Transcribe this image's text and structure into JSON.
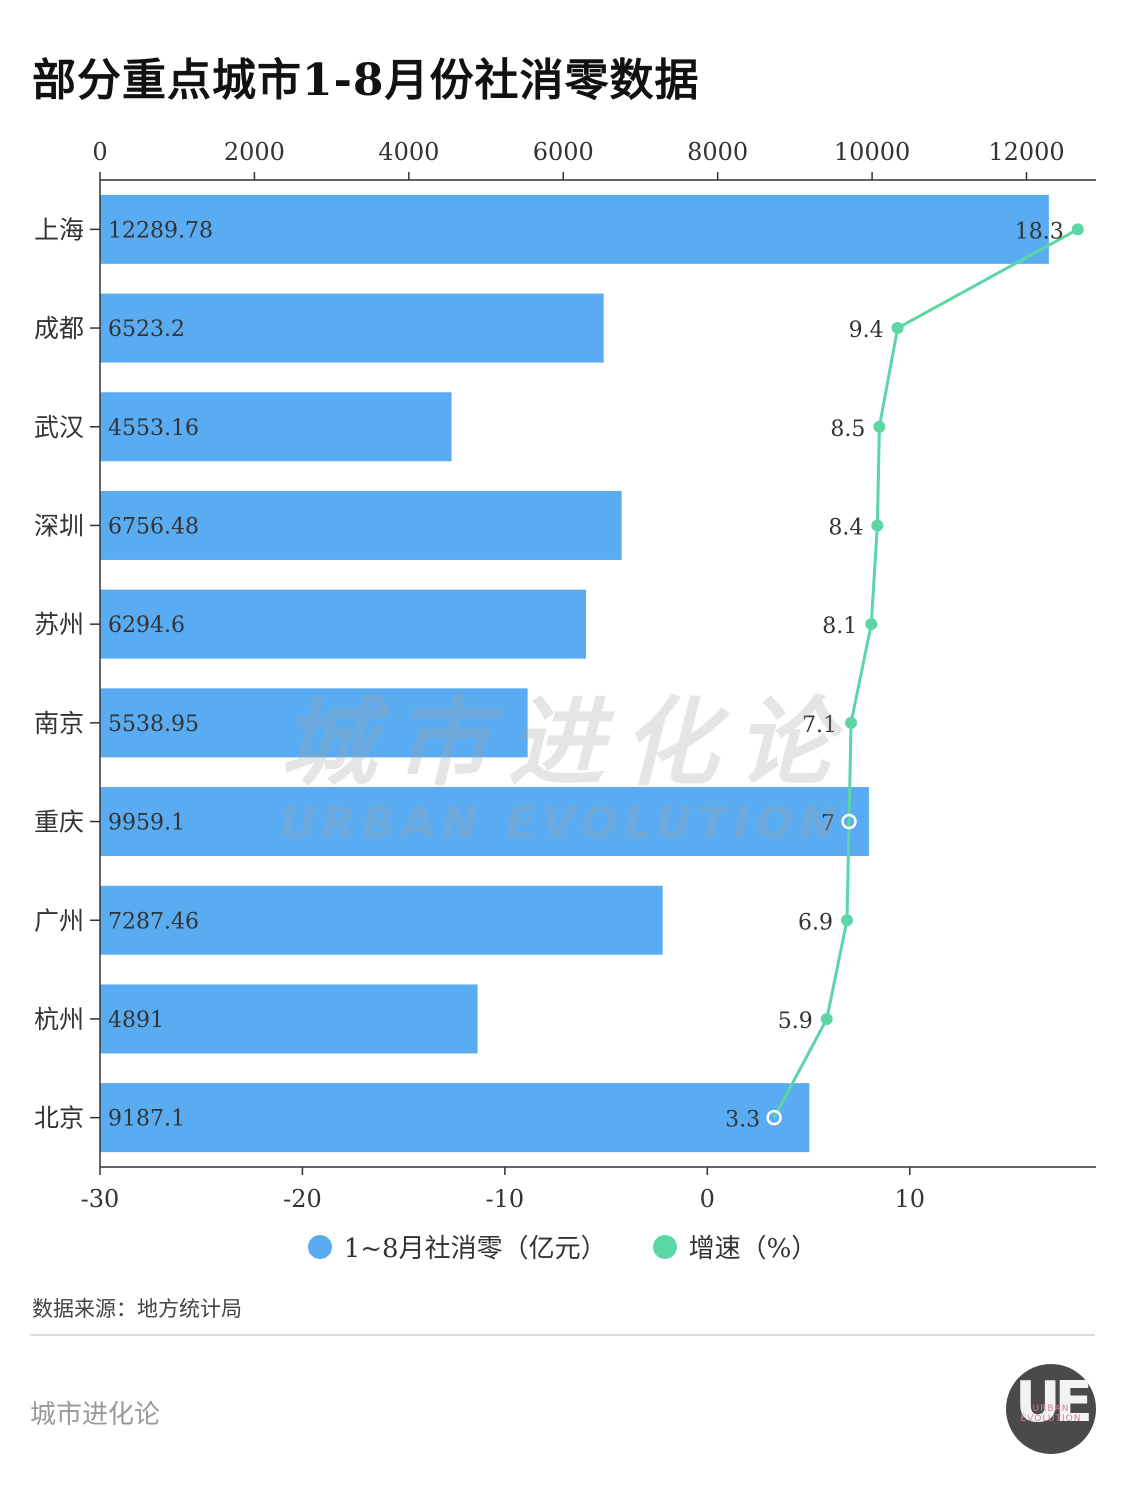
{
  "title": "部分重点城市1-8月份社消零数据",
  "chart_data": {
    "type": "bar",
    "orientation": "horizontal",
    "categories": [
      "上海",
      "成都",
      "武汉",
      "深圳",
      "苏州",
      "南京",
      "重庆",
      "广州",
      "杭州",
      "北京"
    ],
    "series": [
      {
        "name": "1~8月社消零（亿元）",
        "axis": "top",
        "values": [
          12289.78,
          6523.2,
          4553.16,
          6756.48,
          6294.6,
          5538.95,
          9959.1,
          7287.46,
          4891,
          9187.1
        ],
        "labels": [
          "12289.78",
          "6523.2",
          "4553.16",
          "6756.48",
          "6294.6",
          "5538.95",
          "9959.1",
          "7287.46",
          "4891",
          "9187.1"
        ],
        "color": "#5aacf2"
      },
      {
        "name": "增速（%）",
        "type": "line",
        "axis": "bottom",
        "values": [
          18.3,
          9.4,
          8.5,
          8.4,
          8.1,
          7.1,
          7,
          6.9,
          5.9,
          3.3
        ],
        "labels": [
          "18.3",
          "9.4",
          "8.5",
          "8.4",
          "8.1",
          "7.1",
          "7",
          "6.9",
          "5.9",
          "3.3"
        ],
        "color": "#5cd6a4"
      }
    ],
    "top_axis": {
      "range": [
        0,
        12900
      ],
      "ticks": [
        "0",
        "2000",
        "4000",
        "6000",
        "8000",
        "10000",
        "12000"
      ]
    },
    "bottom_axis": {
      "range": [
        -30,
        19.2
      ],
      "ticks": [
        "-30",
        "-20",
        "-10",
        "0",
        "10"
      ]
    },
    "legend_position": "bottom-center",
    "grid": false
  },
  "source": "数据来源：地方统计局",
  "footer": {
    "brand": "城市进化论"
  },
  "watermark": {
    "cn": "城市进化论",
    "en": "URBAN EVOLUTION"
  },
  "logo": {
    "mark": "UE",
    "sub": "URBAN EVOLUTION"
  }
}
